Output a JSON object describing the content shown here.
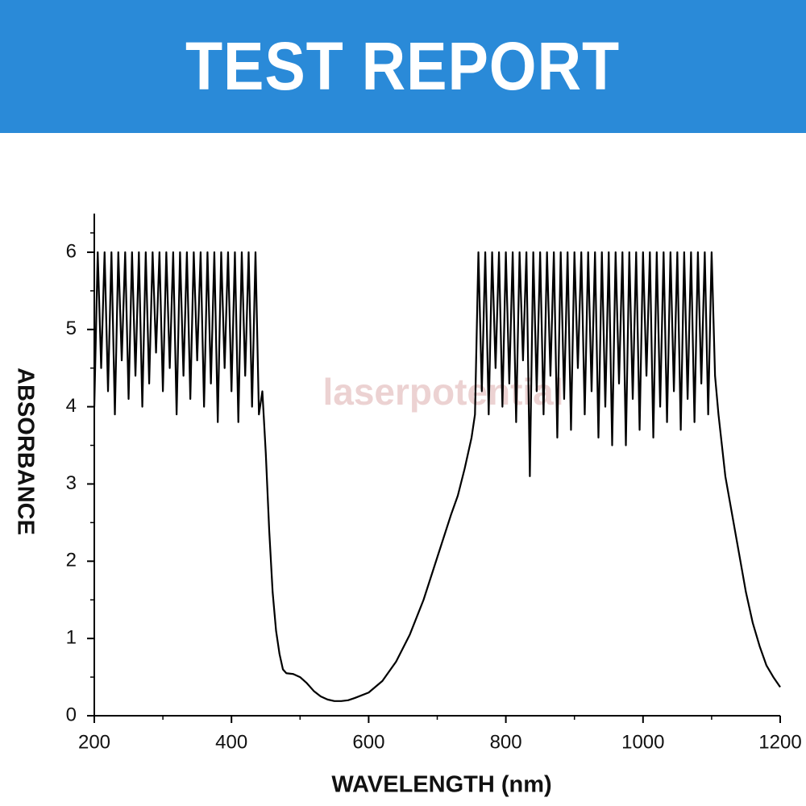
{
  "header": {
    "title": "TEST REPORT"
  },
  "chart_data": {
    "type": "line",
    "watermark": "laserpotential",
    "x_label": "WAVELENGTH (nm)",
    "y_label": "ABSORBANCE",
    "xlim": [
      200,
      1200
    ],
    "ylim": [
      0,
      6.5
    ],
    "xticks": [
      200,
      400,
      600,
      800,
      1000,
      1200
    ],
    "yticks": [
      0,
      1,
      2,
      3,
      4,
      5,
      6
    ],
    "color": "#000000",
    "x": [
      200,
      205,
      210,
      215,
      220,
      225,
      230,
      235,
      240,
      245,
      250,
      255,
      260,
      265,
      270,
      275,
      280,
      285,
      290,
      295,
      300,
      305,
      310,
      315,
      320,
      325,
      330,
      335,
      340,
      345,
      350,
      355,
      360,
      365,
      370,
      375,
      380,
      385,
      390,
      395,
      400,
      405,
      410,
      415,
      420,
      425,
      430,
      435,
      440,
      445,
      450,
      455,
      460,
      465,
      470,
      475,
      480,
      490,
      500,
      510,
      520,
      530,
      540,
      550,
      560,
      570,
      580,
      600,
      620,
      640,
      660,
      680,
      700,
      720,
      730,
      740,
      750,
      755,
      760,
      765,
      770,
      775,
      780,
      785,
      790,
      795,
      800,
      805,
      810,
      815,
      820,
      825,
      830,
      835,
      840,
      845,
      850,
      855,
      860,
      865,
      870,
      875,
      880,
      885,
      890,
      895,
      900,
      905,
      910,
      915,
      920,
      925,
      930,
      935,
      940,
      945,
      950,
      955,
      960,
      965,
      970,
      975,
      980,
      985,
      990,
      995,
      1000,
      1005,
      1010,
      1015,
      1020,
      1025,
      1030,
      1035,
      1040,
      1045,
      1050,
      1055,
      1060,
      1065,
      1070,
      1075,
      1080,
      1085,
      1090,
      1095,
      1100,
      1105,
      1110,
      1115,
      1120,
      1130,
      1140,
      1150,
      1160,
      1170,
      1180,
      1190,
      1200
    ],
    "values": [
      4.0,
      6,
      4.5,
      6,
      4.2,
      6,
      3.9,
      6,
      4.6,
      6,
      4.1,
      6,
      4.4,
      6,
      4.0,
      6,
      4.3,
      6,
      4.7,
      6,
      4.2,
      6,
      4.5,
      6,
      3.9,
      6,
      4.4,
      6,
      4.1,
      6,
      4.6,
      6,
      4.0,
      6,
      4.3,
      6,
      3.8,
      6,
      4.5,
      6,
      4.2,
      6,
      3.8,
      6,
      4.4,
      6,
      4.0,
      6,
      3.9,
      4.2,
      3.4,
      2.4,
      1.6,
      1.1,
      0.8,
      0.6,
      0.55,
      0.54,
      0.5,
      0.42,
      0.32,
      0.25,
      0.21,
      0.19,
      0.19,
      0.2,
      0.23,
      0.3,
      0.45,
      0.7,
      1.05,
      1.5,
      2.05,
      2.6,
      2.85,
      3.2,
      3.6,
      3.9,
      6,
      4.2,
      6,
      3.9,
      6,
      4.5,
      6,
      4.0,
      6,
      4.3,
      6,
      3.8,
      6,
      4.6,
      6,
      3.1,
      6,
      4.2,
      6,
      3.9,
      6,
      4.4,
      6,
      3.6,
      6,
      4.1,
      6,
      3.7,
      6,
      4.5,
      6,
      3.9,
      6,
      4.2,
      6,
      3.6,
      6,
      4.0,
      6,
      3.5,
      6,
      4.3,
      6,
      3.5,
      6,
      4.1,
      6,
      3.7,
      6,
      4.4,
      6,
      3.6,
      6,
      4.0,
      6,
      3.8,
      6,
      4.2,
      6,
      3.7,
      6,
      4.1,
      6,
      3.8,
      6,
      4.3,
      6,
      3.9,
      6,
      4.4,
      3.9,
      3.5,
      3.1,
      2.6,
      2.1,
      1.6,
      1.2,
      0.9,
      0.65,
      0.5,
      0.37
    ]
  }
}
